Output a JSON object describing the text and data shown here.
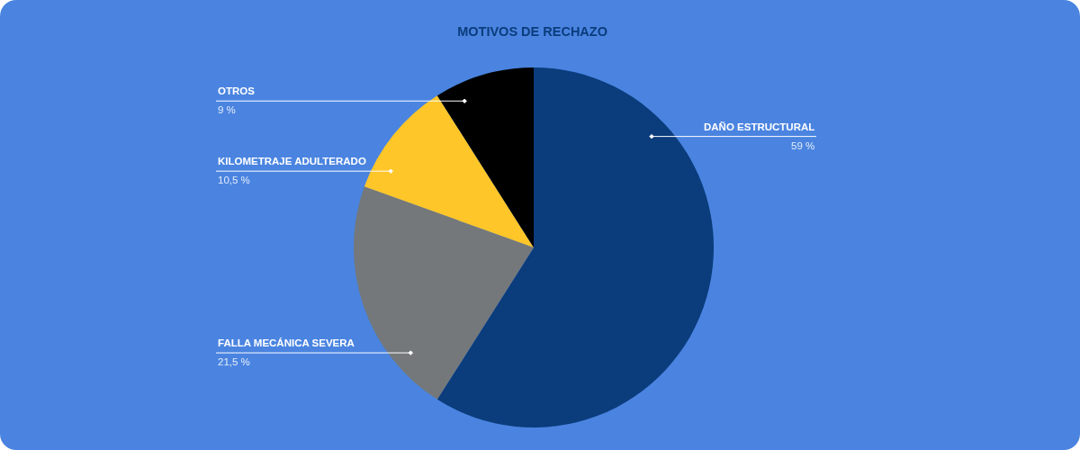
{
  "chart_data": {
    "type": "pie",
    "title": "MOTIVOS DE RECHAZO",
    "categories": [
      "DAÑO ESTRUCTURAL",
      "FALLA MECÁNICA SEVERA",
      "KILOMETRAJE ADULTERADO",
      "OTROS"
    ],
    "values": [
      59,
      21.5,
      10.5,
      9
    ],
    "colors": [
      "#0b3c7c",
      "#74787a",
      "#ffc629",
      "#000000"
    ],
    "value_labels": [
      "59 %",
      "21,5 %",
      "10,5 %",
      "9 %"
    ]
  }
}
